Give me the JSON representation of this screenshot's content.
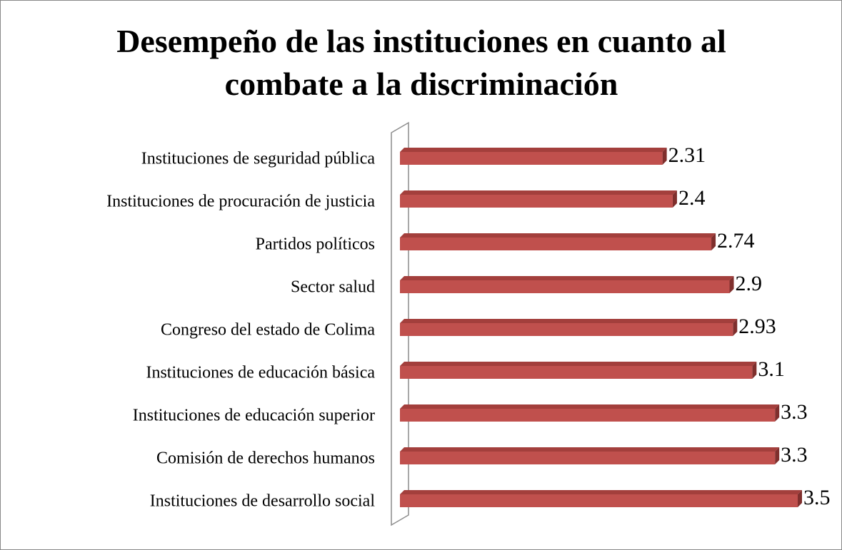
{
  "chart_data": {
    "type": "bar",
    "orientation": "horizontal",
    "title": "Desempeño de las instituciones en cuanto al combate a la discriminación",
    "categories": [
      "Instituciones de seguridad pública",
      "Instituciones de procuración de justicia",
      "Partidos políticos",
      "Sector salud",
      "Congreso del estado de Colima",
      "Instituciones de educación básica",
      "Instituciones de educación superior",
      "Comisión de derechos humanos",
      "Instituciones de desarrollo social"
    ],
    "values": [
      2.31,
      2.4,
      2.74,
      2.9,
      2.93,
      3.1,
      3.3,
      3.3,
      3.5
    ],
    "color": "#c0504d",
    "xlim": [
      0,
      3.5
    ]
  }
}
